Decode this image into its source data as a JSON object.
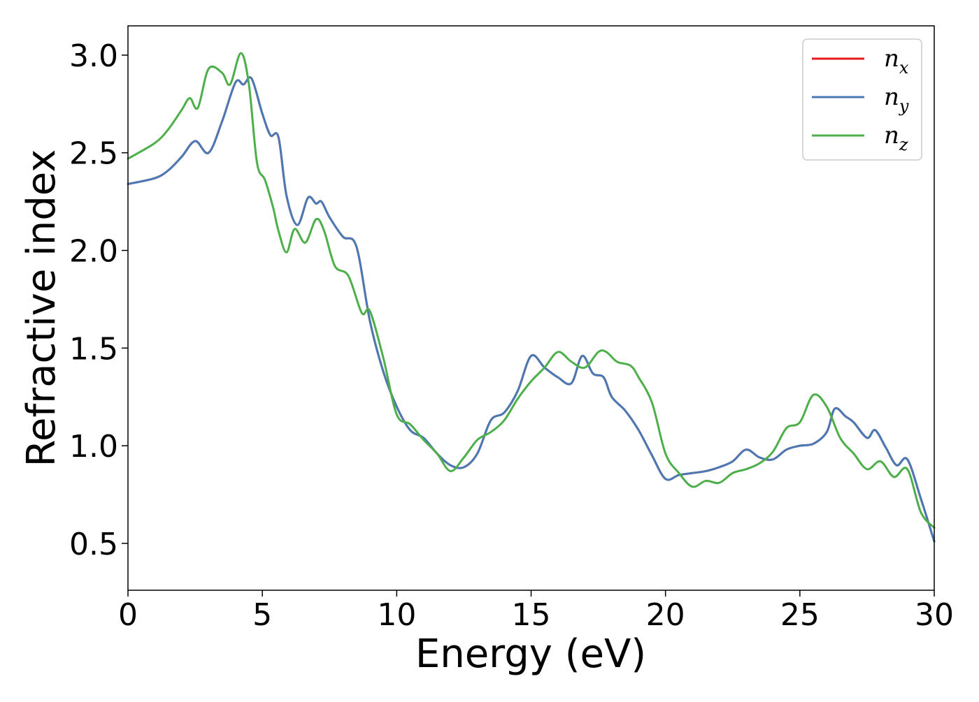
{
  "chart_data": {
    "type": "line",
    "title": "",
    "xlabel": "Energy (eV)",
    "ylabel": "Refractive index",
    "xlim": [
      0,
      30
    ],
    "ylim": [
      0.26,
      3.15
    ],
    "xticks": [
      "0",
      "5",
      "10",
      "15",
      "20",
      "25",
      "30"
    ],
    "yticks": [
      "0.5",
      "1.0",
      "1.5",
      "2.0",
      "2.5",
      "3.0"
    ],
    "grid": false,
    "legend_position": "top-right",
    "legend": [
      {
        "base": "n",
        "sub": "x",
        "color": "#e41a1c"
      },
      {
        "base": "n",
        "sub": "y",
        "color": "#4a7ab5"
      },
      {
        "base": "n",
        "sub": "z",
        "color": "#4daf4a"
      }
    ],
    "series": [
      {
        "name": "n_x",
        "color": "#e41a1c",
        "x": [
          0,
          1,
          1.5,
          2,
          2.5,
          3,
          3.5,
          4,
          4.3,
          4.6,
          5,
          5.3,
          5.6,
          5.9,
          6.3,
          6.7,
          7,
          7.2,
          7.5,
          8,
          8.5,
          9,
          9.5,
          10,
          10.5,
          11,
          11.5,
          12,
          12.5,
          13,
          13.5,
          14,
          14.5,
          15,
          15.5,
          16,
          16.5,
          16.9,
          17.3,
          17.7,
          18,
          18.5,
          19,
          19.5,
          20,
          20.5,
          21,
          21.5,
          22,
          22.5,
          23,
          23.5,
          24,
          24.5,
          25,
          25.5,
          26,
          26.3,
          26.7,
          27,
          27.5,
          27.8,
          28.2,
          28.6,
          29,
          29.5,
          30
        ],
        "y": [
          2.34,
          2.37,
          2.41,
          2.48,
          2.56,
          2.5,
          2.66,
          2.86,
          2.85,
          2.88,
          2.7,
          2.59,
          2.58,
          2.28,
          2.13,
          2.27,
          2.24,
          2.25,
          2.17,
          2.07,
          2.02,
          1.64,
          1.38,
          1.2,
          1.08,
          1.04,
          0.96,
          0.9,
          0.89,
          0.96,
          1.13,
          1.17,
          1.28,
          1.46,
          1.4,
          1.35,
          1.32,
          1.46,
          1.37,
          1.35,
          1.25,
          1.18,
          1.08,
          0.95,
          0.83,
          0.85,
          0.86,
          0.87,
          0.89,
          0.92,
          0.98,
          0.94,
          0.93,
          0.98,
          1.0,
          1.01,
          1.07,
          1.19,
          1.15,
          1.12,
          1.04,
          1.08,
          0.99,
          0.9,
          0.93,
          0.73,
          0.51
        ]
      },
      {
        "name": "n_y",
        "color": "#4a7ab5",
        "x": [
          0,
          1,
          1.5,
          2,
          2.5,
          3,
          3.5,
          4,
          4.3,
          4.6,
          5,
          5.3,
          5.6,
          5.9,
          6.3,
          6.7,
          7,
          7.2,
          7.5,
          8,
          8.5,
          9,
          9.5,
          10,
          10.5,
          11,
          11.5,
          12,
          12.5,
          13,
          13.5,
          14,
          14.5,
          15,
          15.5,
          16,
          16.5,
          16.9,
          17.3,
          17.7,
          18,
          18.5,
          19,
          19.5,
          20,
          20.5,
          21,
          21.5,
          22,
          22.5,
          23,
          23.5,
          24,
          24.5,
          25,
          25.5,
          26,
          26.3,
          26.7,
          27,
          27.5,
          27.8,
          28.2,
          28.6,
          29,
          29.5,
          30
        ],
        "y": [
          2.34,
          2.37,
          2.41,
          2.48,
          2.56,
          2.5,
          2.66,
          2.86,
          2.85,
          2.88,
          2.7,
          2.59,
          2.58,
          2.28,
          2.13,
          2.27,
          2.24,
          2.25,
          2.17,
          2.07,
          2.02,
          1.64,
          1.38,
          1.2,
          1.08,
          1.04,
          0.96,
          0.9,
          0.89,
          0.96,
          1.13,
          1.17,
          1.28,
          1.46,
          1.4,
          1.35,
          1.32,
          1.46,
          1.37,
          1.35,
          1.25,
          1.18,
          1.08,
          0.95,
          0.83,
          0.85,
          0.86,
          0.87,
          0.89,
          0.92,
          0.98,
          0.94,
          0.93,
          0.98,
          1.0,
          1.01,
          1.07,
          1.19,
          1.15,
          1.12,
          1.04,
          1.08,
          0.99,
          0.9,
          0.93,
          0.73,
          0.51
        ]
      },
      {
        "name": "n_z",
        "color": "#4daf4a",
        "x": [
          0,
          1,
          1.5,
          2,
          2.3,
          2.6,
          3,
          3.5,
          3.8,
          4.2,
          4.5,
          4.8,
          5.1,
          5.4,
          5.6,
          5.9,
          6.2,
          6.6,
          7,
          7.3,
          7.7,
          8.2,
          8.7,
          9,
          9.5,
          10,
          10.5,
          11,
          11.5,
          12,
          12.5,
          13,
          13.5,
          14,
          14.5,
          15,
          15.5,
          16,
          16.5,
          17,
          17.5,
          17.8,
          18.2,
          18.7,
          19,
          19.5,
          20,
          20.5,
          21,
          21.5,
          22,
          22.5,
          23,
          23.5,
          24,
          24.5,
          25,
          25.5,
          26,
          26.5,
          27,
          27.5,
          28,
          28.5,
          29,
          29.5,
          30
        ],
        "y": [
          2.47,
          2.55,
          2.62,
          2.72,
          2.78,
          2.73,
          2.93,
          2.91,
          2.85,
          3.01,
          2.85,
          2.45,
          2.36,
          2.22,
          2.1,
          1.99,
          2.11,
          2.04,
          2.16,
          2.1,
          1.92,
          1.87,
          1.68,
          1.69,
          1.45,
          1.16,
          1.11,
          1.03,
          0.96,
          0.87,
          0.94,
          1.03,
          1.07,
          1.13,
          1.24,
          1.33,
          1.4,
          1.48,
          1.43,
          1.4,
          1.48,
          1.48,
          1.43,
          1.41,
          1.35,
          1.22,
          0.96,
          0.86,
          0.79,
          0.82,
          0.81,
          0.86,
          0.88,
          0.91,
          0.97,
          1.09,
          1.12,
          1.26,
          1.2,
          1.04,
          0.96,
          0.88,
          0.92,
          0.84,
          0.88,
          0.66,
          0.58
        ]
      }
    ]
  }
}
